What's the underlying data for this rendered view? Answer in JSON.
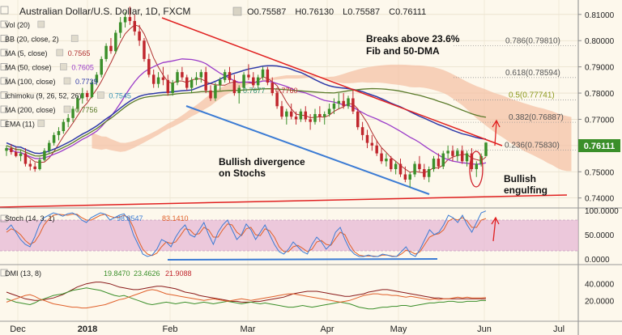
{
  "header": {
    "symbol": "Australian Dollar/U.S. Dollar, 1D, FXCM",
    "open_label": "O",
    "open": "0.75587",
    "high_label": "H",
    "high": "0.76130",
    "low_label": "L",
    "low": "0.75587",
    "close_label": "C",
    "close": "0.76111"
  },
  "legend": [
    {
      "label": "Vol (20)",
      "value": ""
    },
    {
      "label": "BB (20, close, 2)",
      "value": ""
    },
    {
      "label": "MA (5, close)",
      "value": "0.7565"
    },
    {
      "label": "MA (50, close)",
      "value": "0.7605"
    },
    {
      "label": "MA (100, close)",
      "value": "0.7739"
    },
    {
      "label": "Ichimoku (9, 26, 52, 26)",
      "value": "0.7545"
    },
    {
      "label": "MA (200, close)",
      "value": "0.7756"
    },
    {
      "label": "EMA (11)",
      "value": ""
    }
  ],
  "ichimoku_extra_values": [
    "0.7677",
    "0.7760"
  ],
  "annotations": {
    "breaks": [
      "Breaks above 23.6%",
      "Fib and 50-DMA"
    ],
    "divergence": [
      "Bullish divergence",
      "on Stochs"
    ],
    "engulfing": [
      "Bullish",
      "engulfing"
    ]
  },
  "fib_levels": [
    {
      "label": "0.786(0.79810)",
      "value": 0.7981,
      "color": "#555555"
    },
    {
      "label": "0.618(0.78594)",
      "value": 0.78594,
      "color": "#555555"
    },
    {
      "label": "0.5(0.77741)",
      "value": 0.77741,
      "color": "#8c9a1f"
    },
    {
      "label": "0.382(0.76887)",
      "value": 0.76887,
      "color": "#555555"
    },
    {
      "label": "0.236(0.75830)",
      "value": 0.7583,
      "color": "#555555"
    }
  ],
  "current_price_label": "0.76111",
  "stoch_panel": {
    "label": "Stoch (14, 3, 1)",
    "k": "98.8547",
    "d": "83.1410",
    "ticks": [
      "100.0000",
      "50.0000",
      "0.0000"
    ]
  },
  "dmi_panel": {
    "label": "DMI (13, 8)",
    "plus": "19.8470",
    "minus": "23.4626",
    "adx": "21.9088",
    "ticks": [
      "40.0000",
      "20.0000"
    ]
  },
  "colors": {
    "up": "#3b8f2a",
    "down": "#c0262d",
    "ma50": "#9b3cc9",
    "ma100": "#2f3aa8",
    "ma200": "#5a7a2a",
    "trend_red": "#e02020",
    "trend_blue": "#3b7bd4",
    "stoch_fill": "#e6b8d6",
    "cloud_red": "#f4bfa3",
    "cloud_green": "#c8d49a"
  },
  "chart_data": {
    "type": "candlestick",
    "price_axis": {
      "ylim": [
        0.7365,
        0.8155
      ],
      "ticks": [
        0.81,
        0.8,
        0.79,
        0.78,
        0.77,
        0.76,
        0.75,
        0.74
      ]
    },
    "x_ticks": [
      "Dec",
      "2018",
      "Feb",
      "Mar",
      "Apr",
      "May",
      "Jun",
      "Jul"
    ],
    "candles": [
      [
        0.758,
        0.76,
        0.756,
        0.759
      ],
      [
        0.759,
        0.7605,
        0.7565,
        0.7575
      ],
      [
        0.7575,
        0.7595,
        0.7555,
        0.756
      ],
      [
        0.756,
        0.7585,
        0.754,
        0.757
      ],
      [
        0.757,
        0.759,
        0.752,
        0.753
      ],
      [
        0.753,
        0.7545,
        0.7505,
        0.752
      ],
      [
        0.752,
        0.7535,
        0.75,
        0.751
      ],
      [
        0.751,
        0.7555,
        0.7505,
        0.7545
      ],
      [
        0.7545,
        0.759,
        0.754,
        0.758
      ],
      [
        0.758,
        0.762,
        0.757,
        0.761
      ],
      [
        0.761,
        0.765,
        0.76,
        0.764
      ],
      [
        0.764,
        0.767,
        0.762,
        0.7655
      ],
      [
        0.7655,
        0.77,
        0.7645,
        0.769
      ],
      [
        0.769,
        0.772,
        0.767,
        0.7705
      ],
      [
        0.7705,
        0.775,
        0.769,
        0.774
      ],
      [
        0.774,
        0.779,
        0.773,
        0.778
      ],
      [
        0.778,
        0.782,
        0.776,
        0.78
      ],
      [
        0.78,
        0.781,
        0.777,
        0.7785
      ],
      [
        0.7785,
        0.785,
        0.778,
        0.784
      ],
      [
        0.784,
        0.788,
        0.783,
        0.787
      ],
      [
        0.787,
        0.794,
        0.786,
        0.793
      ],
      [
        0.793,
        0.799,
        0.792,
        0.798
      ],
      [
        0.798,
        0.801,
        0.795,
        0.796
      ],
      [
        0.796,
        0.804,
        0.795,
        0.803
      ],
      [
        0.803,
        0.809,
        0.801,
        0.807
      ],
      [
        0.807,
        0.811,
        0.805,
        0.809
      ],
      [
        0.809,
        0.813,
        0.806,
        0.8075
      ],
      [
        0.8075,
        0.81,
        0.802,
        0.8035
      ],
      [
        0.8035,
        0.806,
        0.798,
        0.8
      ],
      [
        0.8,
        0.801,
        0.792,
        0.793
      ],
      [
        0.793,
        0.795,
        0.786,
        0.787
      ],
      [
        0.787,
        0.789,
        0.782,
        0.7835
      ],
      [
        0.7835,
        0.788,
        0.782,
        0.786
      ],
      [
        0.786,
        0.79,
        0.783,
        0.785
      ],
      [
        0.785,
        0.787,
        0.779,
        0.78
      ],
      [
        0.78,
        0.785,
        0.779,
        0.784
      ],
      [
        0.784,
        0.789,
        0.783,
        0.788
      ],
      [
        0.788,
        0.79,
        0.785,
        0.786
      ],
      [
        0.786,
        0.787,
        0.781,
        0.782
      ],
      [
        0.782,
        0.786,
        0.78,
        0.785
      ],
      [
        0.785,
        0.788,
        0.783,
        0.786
      ],
      [
        0.786,
        0.789,
        0.784,
        0.788
      ],
      [
        0.788,
        0.79,
        0.78,
        0.781
      ],
      [
        0.781,
        0.783,
        0.777,
        0.778
      ],
      [
        0.778,
        0.784,
        0.777,
        0.783
      ],
      [
        0.783,
        0.786,
        0.781,
        0.785
      ],
      [
        0.785,
        0.789,
        0.784,
        0.788
      ],
      [
        0.788,
        0.79,
        0.784,
        0.785
      ],
      [
        0.785,
        0.787,
        0.779,
        0.78
      ],
      [
        0.78,
        0.783,
        0.776,
        0.782
      ],
      [
        0.782,
        0.788,
        0.781,
        0.787
      ],
      [
        0.787,
        0.791,
        0.785,
        0.786
      ],
      [
        0.786,
        0.788,
        0.782,
        0.783
      ],
      [
        0.783,
        0.787,
        0.781,
        0.786
      ],
      [
        0.786,
        0.79,
        0.785,
        0.789
      ],
      [
        0.789,
        0.79,
        0.783,
        0.784
      ],
      [
        0.784,
        0.786,
        0.779,
        0.78
      ],
      [
        0.78,
        0.781,
        0.774,
        0.775
      ],
      [
        0.775,
        0.777,
        0.77,
        0.771
      ],
      [
        0.771,
        0.774,
        0.768,
        0.773
      ],
      [
        0.773,
        0.776,
        0.77,
        0.771
      ],
      [
        0.771,
        0.773,
        0.768,
        0.77
      ],
      [
        0.77,
        0.774,
        0.769,
        0.773
      ],
      [
        0.773,
        0.775,
        0.769,
        0.77
      ],
      [
        0.77,
        0.772,
        0.766,
        0.769
      ],
      [
        0.769,
        0.774,
        0.768,
        0.772
      ],
      [
        0.772,
        0.775,
        0.769,
        0.771
      ],
      [
        0.771,
        0.773,
        0.768,
        0.772
      ],
      [
        0.772,
        0.776,
        0.771,
        0.774
      ],
      [
        0.774,
        0.778,
        0.772,
        0.776
      ],
      [
        0.776,
        0.78,
        0.774,
        0.777
      ],
      [
        0.777,
        0.78,
        0.774,
        0.775
      ],
      [
        0.775,
        0.779,
        0.774,
        0.778
      ],
      [
        0.778,
        0.781,
        0.772,
        0.773
      ],
      [
        0.773,
        0.774,
        0.766,
        0.767
      ],
      [
        0.767,
        0.769,
        0.762,
        0.764
      ],
      [
        0.764,
        0.766,
        0.759,
        0.761
      ],
      [
        0.761,
        0.764,
        0.758,
        0.76
      ],
      [
        0.76,
        0.762,
        0.756,
        0.757
      ],
      [
        0.757,
        0.759,
        0.753,
        0.754
      ],
      [
        0.754,
        0.757,
        0.752,
        0.755
      ],
      [
        0.755,
        0.756,
        0.75,
        0.751
      ],
      [
        0.751,
        0.754,
        0.749,
        0.753
      ],
      [
        0.753,
        0.755,
        0.748,
        0.749
      ],
      [
        0.749,
        0.752,
        0.746,
        0.747
      ],
      [
        0.747,
        0.75,
        0.744,
        0.749
      ],
      [
        0.749,
        0.754,
        0.748,
        0.753
      ],
      [
        0.753,
        0.756,
        0.75,
        0.751
      ],
      [
        0.751,
        0.753,
        0.747,
        0.748
      ],
      [
        0.748,
        0.752,
        0.746,
        0.751
      ],
      [
        0.751,
        0.756,
        0.75,
        0.755
      ],
      [
        0.755,
        0.757,
        0.751,
        0.752
      ],
      [
        0.752,
        0.758,
        0.751,
        0.757
      ],
      [
        0.757,
        0.76,
        0.755,
        0.758
      ],
      [
        0.758,
        0.76,
        0.754,
        0.756
      ],
      [
        0.756,
        0.759,
        0.754,
        0.758
      ],
      [
        0.758,
        0.76,
        0.753,
        0.754
      ],
      [
        0.754,
        0.758,
        0.752,
        0.757
      ],
      [
        0.757,
        0.759,
        0.75,
        0.751
      ],
      [
        0.751,
        0.754,
        0.748,
        0.753
      ],
      [
        0.753,
        0.757,
        0.752,
        0.756
      ],
      [
        0.756,
        0.7613,
        0.7558,
        0.7611
      ]
    ],
    "stoch_k": [
      60,
      70,
      55,
      40,
      30,
      25,
      45,
      70,
      85,
      90,
      95,
      92,
      88,
      93,
      95,
      90,
      80,
      75,
      85,
      90,
      95,
      92,
      80,
      85,
      90,
      93,
      80,
      50,
      30,
      10,
      5,
      8,
      20,
      40,
      35,
      25,
      45,
      60,
      70,
      50,
      45,
      60,
      75,
      50,
      30,
      55,
      70,
      80,
      60,
      40,
      50,
      72,
      60,
      40,
      55,
      70,
      50,
      30,
      15,
      10,
      20,
      35,
      25,
      15,
      10,
      30,
      45,
      35,
      20,
      30,
      55,
      65,
      40,
      20,
      10,
      5,
      5,
      8,
      5,
      5,
      10,
      8,
      5,
      5,
      15,
      25,
      10,
      5,
      20,
      40,
      60,
      50,
      55,
      70,
      90,
      85,
      75,
      90,
      70,
      55,
      75,
      95,
      98.85
    ],
    "stoch_d": [
      55,
      62,
      58,
      50,
      38,
      30,
      35,
      50,
      70,
      82,
      90,
      92,
      91,
      90,
      92,
      92,
      85,
      80,
      80,
      85,
      90,
      92,
      88,
      85,
      86,
      90,
      85,
      65,
      40,
      20,
      10,
      7,
      12,
      25,
      35,
      32,
      35,
      48,
      62,
      60,
      50,
      52,
      65,
      60,
      45,
      45,
      60,
      72,
      70,
      55,
      48,
      62,
      65,
      50,
      48,
      62,
      58,
      45,
      25,
      15,
      15,
      25,
      28,
      22,
      15,
      20,
      35,
      38,
      30,
      28,
      42,
      55,
      50,
      30,
      15,
      8,
      6,
      6,
      6,
      5,
      8,
      8,
      6,
      5,
      10,
      18,
      15,
      10,
      15,
      30,
      45,
      50,
      52,
      60,
      78,
      83,
      80,
      85,
      78,
      65,
      65,
      80,
      83.14
    ],
    "dmi_plus": [
      22,
      20,
      18,
      17,
      16,
      15,
      17,
      20,
      22,
      24,
      26,
      27,
      28,
      30,
      32,
      33,
      34,
      35,
      34,
      33,
      32,
      30,
      28,
      26,
      25,
      26,
      24,
      22,
      20,
      18,
      16,
      15,
      16,
      17,
      18,
      17,
      16,
      17,
      18,
      17,
      16,
      17,
      18,
      17,
      16,
      17,
      18,
      19,
      18,
      17,
      16,
      17,
      18,
      17,
      16,
      17,
      16,
      15,
      14,
      13,
      12,
      12,
      13,
      14,
      13,
      12,
      13,
      14,
      15,
      16,
      17,
      18,
      17,
      16,
      14,
      12,
      11,
      10,
      10,
      11,
      12,
      12,
      13,
      13,
      14,
      14,
      13,
      14,
      15,
      16,
      17,
      17,
      18,
      18,
      19,
      19,
      18,
      18,
      19,
      19,
      19,
      20,
      19.85
    ],
    "dmi_minus": [
      18,
      20,
      22,
      24,
      26,
      27,
      25,
      22,
      20,
      18,
      16,
      15,
      14,
      13,
      12,
      12,
      11,
      11,
      12,
      13,
      14,
      15,
      17,
      19,
      21,
      22,
      24,
      26,
      28,
      30,
      32,
      33,
      32,
      30,
      28,
      27,
      26,
      25,
      24,
      23,
      22,
      21,
      20,
      21,
      22,
      21,
      20,
      19,
      20,
      21,
      22,
      21,
      20,
      21,
      22,
      23,
      24,
      25,
      26,
      27,
      28,
      28,
      27,
      26,
      25,
      24,
      23,
      22,
      21,
      20,
      19,
      18,
      19,
      20,
      22,
      24,
      26,
      27,
      28,
      28,
      27,
      27,
      26,
      26,
      25,
      24,
      25,
      24,
      23,
      22,
      21,
      22,
      21,
      22,
      22,
      23,
      24,
      23,
      24,
      23,
      23,
      23,
      23.46
    ],
    "dmi_adx": [
      30,
      28,
      26,
      24,
      22,
      21,
      20,
      20,
      21,
      22,
      23,
      25,
      27,
      30,
      33,
      36,
      38,
      40,
      41,
      42,
      42,
      41,
      40,
      38,
      36,
      35,
      34,
      33,
      33,
      34,
      35,
      36,
      37,
      37,
      36,
      35,
      34,
      32,
      30,
      29,
      28,
      26,
      25,
      24,
      23,
      22,
      21,
      20,
      19,
      19,
      18,
      18,
      18,
      19,
      19,
      20,
      21,
      22,
      23,
      24,
      26,
      28,
      29,
      30,
      31,
      31,
      31,
      30,
      29,
      28,
      27,
      26,
      25,
      25,
      26,
      27,
      28,
      30,
      31,
      32,
      33,
      33,
      32,
      31,
      30,
      29,
      28,
      27,
      26,
      25,
      24,
      23,
      23,
      22,
      22,
      22,
      22,
      22,
      22,
      22,
      22,
      22,
      21.91
    ]
  }
}
